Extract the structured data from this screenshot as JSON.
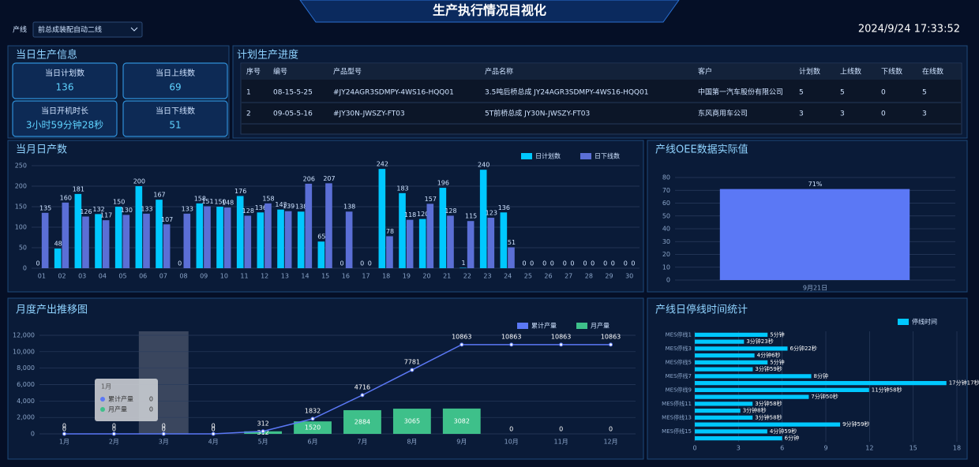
{
  "header": {
    "title": "生产执行情况目视化",
    "line_label": "产线",
    "line_value": "前总成装配自动二线",
    "datetime": "2024/9/24 17:33:52"
  },
  "info": {
    "title": "当日生产信息",
    "cards": [
      {
        "label": "当日计划数",
        "value": 136
      },
      {
        "label": "当日上线数",
        "value": 69
      },
      {
        "label": "当日开机时长",
        "value": "3小时59分钟28秒"
      },
      {
        "label": "当日下线数",
        "value": 51
      }
    ]
  },
  "table": {
    "title": "计划生产进度",
    "columns": [
      "序号",
      "编号",
      "产品型号",
      "产品名称",
      "客户",
      "计划数",
      "上线数",
      "下线数",
      "在线数"
    ],
    "rows": [
      [
        1,
        "08-15-5-25",
        "#JY24AGR3SDMPY-4WS16-HQQ01",
        "3.5吨后桥总成 JY24AGR3SDMPY-4WS16-HQQ01",
        "中国第一汽车股份有限公司",
        5,
        5,
        0,
        5
      ],
      [
        2,
        "09-05-5-16",
        "#JY30N-JWSZY-FT03",
        "5T前桥总成 JY30N-JWSZY-FT03",
        "东风商用车公司",
        3,
        3,
        0,
        3
      ]
    ]
  },
  "chart_data": [
    {
      "type": "bar",
      "title": "当月日产数",
      "categories": [
        "01",
        "02",
        "03",
        "04",
        "05",
        "06",
        "07",
        "08",
        "09",
        "10",
        "11",
        "12",
        "13",
        "14",
        "15",
        "16",
        "17",
        "18",
        "19",
        "20",
        "21",
        "22",
        "23",
        "24",
        "25",
        "26",
        "27",
        "28",
        "29",
        "30"
      ],
      "series": [
        {
          "name": "日计划数",
          "color": "#00c8ff",
          "values": [
            0,
            48,
            181,
            132,
            150,
            200,
            167,
            0,
            158,
            150,
            176,
            136,
            143,
            138,
            65,
            0,
            0,
            242,
            183,
            120,
            196,
            1,
            240,
            136,
            0,
            0,
            0,
            0,
            0,
            0
          ]
        },
        {
          "name": "日下线数",
          "color": "#5b6fd6",
          "values": [
            135,
            160,
            126,
            117,
            130,
            133,
            107,
            133,
            151,
            148,
            128,
            158,
            139,
            206,
            207,
            138,
            0,
            78,
            118,
            157,
            128,
            115,
            123,
            51,
            0,
            0,
            0,
            0,
            0,
            0
          ]
        }
      ],
      "ylim": [
        0,
        250
      ],
      "yticks": [
        0,
        50,
        100,
        150,
        200,
        250
      ],
      "grid": true
    },
    {
      "type": "bar",
      "title": "产线OEE数据实际值",
      "categories": [
        "9月21日"
      ],
      "values": [
        71
      ],
      "value_labels": [
        "71%"
      ],
      "color": "#5b78f5",
      "ylim": [
        0,
        80
      ],
      "yticks": [
        0,
        10,
        20,
        30,
        40,
        50,
        60,
        70,
        80
      ],
      "grid": true
    },
    {
      "type": "combo",
      "title": "月度产出推移图",
      "categories": [
        "1月",
        "2月",
        "3月",
        "4月",
        "5月",
        "6月",
        "7月",
        "8月",
        "9月",
        "10月",
        "11月",
        "12月"
      ],
      "series": [
        {
          "name": "累计产量",
          "type": "line",
          "color": "#5b78f5",
          "values": [
            0,
            0,
            0,
            0,
            312,
            1832,
            4716,
            7781,
            10863,
            10863,
            10863,
            10863
          ]
        },
        {
          "name": "月产量",
          "type": "bar",
          "color": "#3ec08a",
          "values": [
            0,
            0,
            0,
            0,
            312,
            1520,
            2884,
            3065,
            3082,
            0,
            0,
            0
          ]
        }
      ],
      "ylim": [
        0,
        12000
      ],
      "yticks": [
        0,
        {
          "value": 2000,
          "label": "2,000"
        },
        {
          "value": 4000,
          "label": "4,000"
        },
        {
          "value": 6000,
          "label": "6,000"
        },
        {
          "value": 8000,
          "label": "8,000"
        },
        {
          "value": 10000,
          "label": "10,000"
        },
        {
          "value": 12000,
          "label": "12,000"
        }
      ],
      "grid": true,
      "tooltip": {
        "title": "1月",
        "items": [
          {
            "name": "累计产量",
            "value": 0
          },
          {
            "name": "月产量",
            "value": 0
          }
        ]
      }
    },
    {
      "type": "barh",
      "title": "产线日停线时间统计",
      "categories": [
        "MES停线1",
        null,
        "MES停线3",
        null,
        "MES停线5",
        null,
        "MES停线7",
        null,
        "MES停线9",
        null,
        "MES停线11",
        null,
        "MES停线13",
        null,
        "MES停线15",
        null
      ],
      "series": [
        {
          "name": "停线时间",
          "color": "#00c8ff",
          "values": [
            5,
            3.38,
            6.37,
            4.1,
            5,
            3.98,
            8,
            17.28,
            11.97,
            7.83,
            3.97,
            3.13,
            3.97,
            9.98,
            4.98,
            6
          ],
          "value_labels": [
            "5分钟",
            "3分钟23秒",
            "6分钟22秒",
            "4分钟6秒",
            "5分钟",
            "3分钟59秒",
            "8分钟",
            "17分钟17秒",
            "11分钟58秒",
            "7分钟50秒",
            "3分钟58秒",
            "3分钟8秒",
            "3分钟58秒",
            "9分钟59秒",
            "4分钟59秒",
            "6分钟"
          ]
        }
      ],
      "xlim": [
        0,
        18
      ],
      "xticks": [
        0,
        3,
        6,
        9,
        12,
        15,
        18
      ],
      "grid": true
    }
  ]
}
